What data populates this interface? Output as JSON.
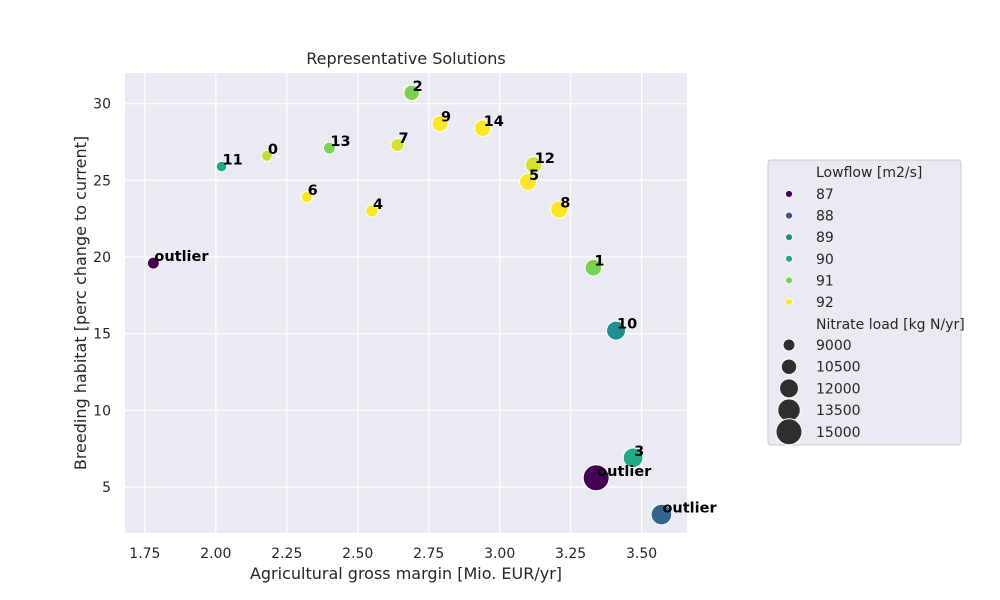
{
  "chart_data": {
    "type": "scatter",
    "title": "Representative Solutions",
    "xlabel": "Agricultural gross margin [Mio. EUR/yr]",
    "ylabel": "Breeding habitat [perc change to current]",
    "xlim": [
      1.68,
      3.66
    ],
    "ylim": [
      2.0,
      32.0
    ],
    "xticks": [
      "1.75",
      "2.00",
      "2.25",
      "2.50",
      "2.75",
      "3.00",
      "3.25",
      "3.50"
    ],
    "yticks": [
      "5",
      "10",
      "15",
      "20",
      "25",
      "30"
    ],
    "grid": true,
    "background": "#eaeaf2",
    "hue_legend": {
      "title": "Lowflow [m2/s]",
      "entries": [
        {
          "label": "87",
          "color": "#440154"
        },
        {
          "label": "88",
          "color": "#3b528b"
        },
        {
          "label": "89",
          "color": "#21908d"
        },
        {
          "label": "90",
          "color": "#22a884"
        },
        {
          "label": "91",
          "color": "#7ad151"
        },
        {
          "label": "92",
          "color": "#fde725"
        }
      ]
    },
    "size_legend": {
      "title": "Nitrate load [kg N/yr]",
      "entries": [
        "9000",
        "10500",
        "12000",
        "13500",
        "15000"
      ]
    },
    "legend_position": "right",
    "points": [
      {
        "label": "outlier",
        "x": 1.78,
        "y": 19.6,
        "lowflow": 87.0,
        "nitrate": 9000
      },
      {
        "label": "11",
        "x": 2.02,
        "y": 25.9,
        "lowflow": 90.0,
        "nitrate": 8400
      },
      {
        "label": "0",
        "x": 2.18,
        "y": 26.6,
        "lowflow": 91.5,
        "nitrate": 8600
      },
      {
        "label": "6",
        "x": 2.32,
        "y": 23.9,
        "lowflow": 92.0,
        "nitrate": 8700
      },
      {
        "label": "13",
        "x": 2.4,
        "y": 27.1,
        "lowflow": 91.0,
        "nitrate": 9000
      },
      {
        "label": "4",
        "x": 2.55,
        "y": 23.0,
        "lowflow": 92.0,
        "nitrate": 9200
      },
      {
        "label": "7",
        "x": 2.64,
        "y": 27.3,
        "lowflow": 91.7,
        "nitrate": 9500
      },
      {
        "label": "2",
        "x": 2.69,
        "y": 30.7,
        "lowflow": 91.0,
        "nitrate": 10500
      },
      {
        "label": "9",
        "x": 2.79,
        "y": 28.7,
        "lowflow": 92.0,
        "nitrate": 10700
      },
      {
        "label": "14",
        "x": 2.94,
        "y": 28.4,
        "lowflow": 92.0,
        "nitrate": 11000
      },
      {
        "label": "12",
        "x": 3.12,
        "y": 26.0,
        "lowflow": 91.7,
        "nitrate": 11000
      },
      {
        "label": "5",
        "x": 3.1,
        "y": 24.9,
        "lowflow": 92.0,
        "nitrate": 11200
      },
      {
        "label": "8",
        "x": 3.21,
        "y": 23.1,
        "lowflow": 92.0,
        "nitrate": 11300
      },
      {
        "label": "1",
        "x": 3.33,
        "y": 19.3,
        "lowflow": 91.0,
        "nitrate": 11000
      },
      {
        "label": "10",
        "x": 3.41,
        "y": 15.2,
        "lowflow": 89.0,
        "nitrate": 12000
      },
      {
        "label": "3",
        "x": 3.47,
        "y": 6.9,
        "lowflow": 90.0,
        "nitrate": 12300
      },
      {
        "label": "outlier",
        "x": 3.34,
        "y": 5.6,
        "lowflow": 87.0,
        "nitrate": 15000
      },
      {
        "label": "outlier",
        "x": 3.57,
        "y": 3.2,
        "lowflow": 88.3,
        "nitrate": 12700
      }
    ]
  }
}
